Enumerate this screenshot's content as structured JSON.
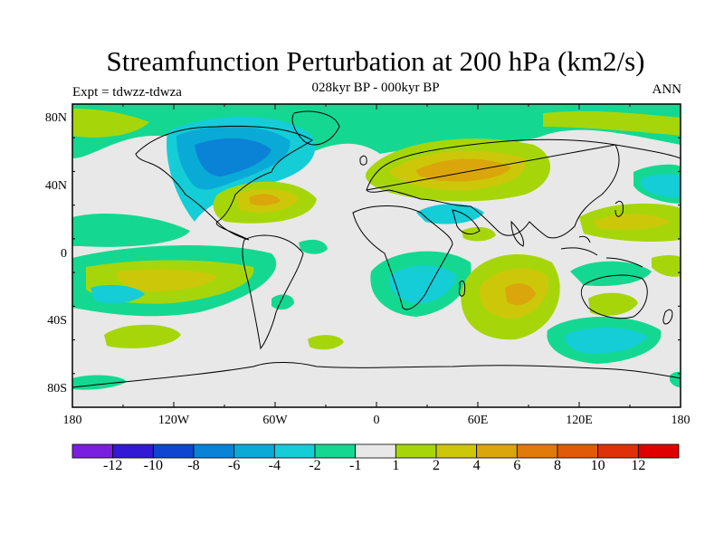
{
  "header": {
    "title": "Streamfunction Perturbation at 200 hPa (km2/s)",
    "subtitle": "028kyr BP - 000kyr BP",
    "left_label": "Expt = tdwzz-tdwza",
    "right_label": "ANN"
  },
  "axes": {
    "lat_labels": [
      "80N",
      "40N",
      "0",
      "40S",
      "80S"
    ],
    "lon_labels": [
      "180",
      "120W",
      "60W",
      "0",
      "60E",
      "120E",
      "180"
    ]
  },
  "colorbar": {
    "labels": [
      "-12",
      "-10",
      "-8",
      "-6",
      "-4",
      "-2",
      "-1",
      "1",
      "2",
      "4",
      "6",
      "8",
      "10",
      "12"
    ],
    "colors": [
      "#7a1fe0",
      "#3219d6",
      "#0e46d1",
      "#0a82d6",
      "#0aaad6",
      "#14cdd6",
      "#14d891",
      "#e8e8e8",
      "#a6d60a",
      "#cdc70a",
      "#dba60c",
      "#e07a0a",
      "#e05a0a",
      "#e0300a",
      "#e00000"
    ]
  }
}
